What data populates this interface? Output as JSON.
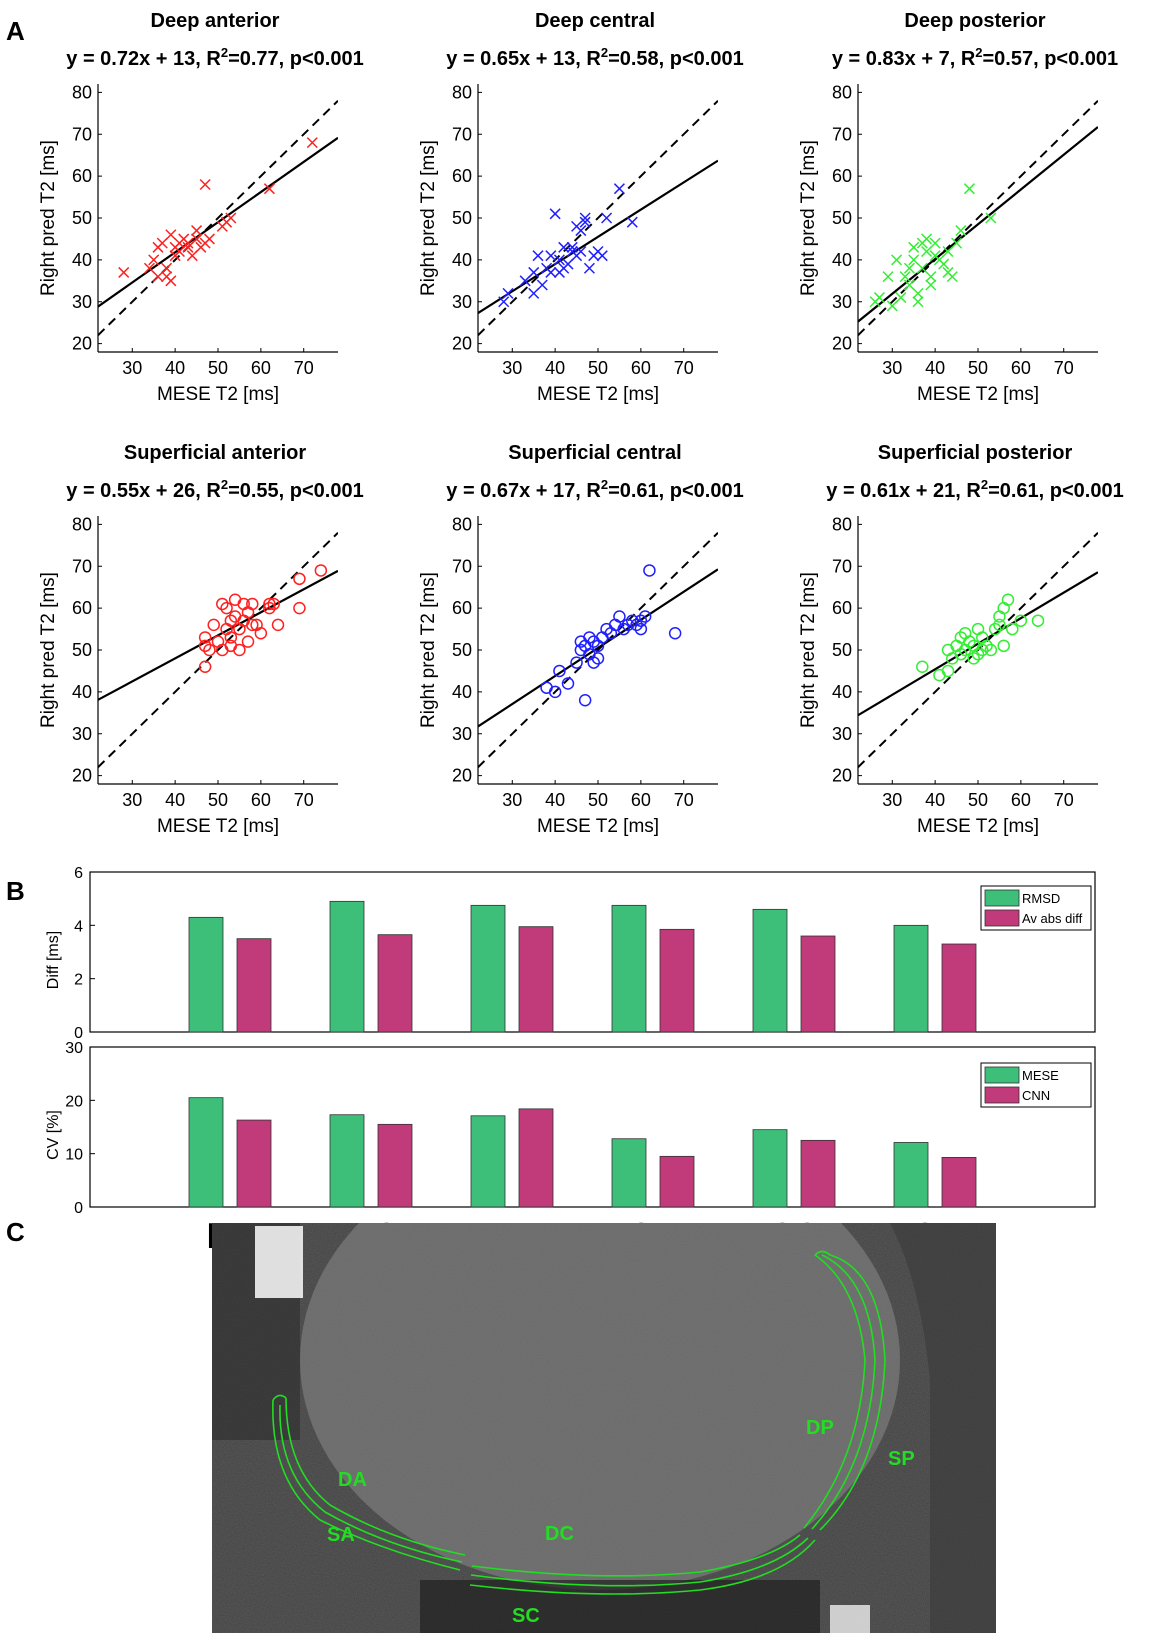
{
  "panel_labels": {
    "a": "A",
    "b": "B",
    "c": "C"
  },
  "chart_data": [
    {
      "type": "scatter",
      "title": "Deep anterior",
      "equation": {
        "slope": 0.72,
        "intercept": 13,
        "r2": "0.77",
        "p": "p<0.001"
      },
      "xlabel": "MESE T2 [ms]",
      "ylabel": "Right pred T2 [ms]",
      "xlim": [
        22,
        78
      ],
      "ylim": [
        18,
        82
      ],
      "xticks": [
        30,
        40,
        50,
        60,
        70
      ],
      "yticks": [
        20,
        30,
        40,
        50,
        60,
        70,
        80
      ],
      "marker": "x",
      "color": "#ff2020",
      "identity_line": true,
      "points": [
        [
          28,
          37
        ],
        [
          34,
          38
        ],
        [
          35,
          40
        ],
        [
          36,
          36
        ],
        [
          36,
          43
        ],
        [
          37,
          44
        ],
        [
          38,
          38
        ],
        [
          38,
          36
        ],
        [
          39,
          35
        ],
        [
          39,
          46
        ],
        [
          40,
          43
        ],
        [
          40,
          41
        ],
        [
          41,
          44
        ],
        [
          41,
          42
        ],
        [
          42,
          45
        ],
        [
          43,
          44
        ],
        [
          43,
          43
        ],
        [
          44,
          41
        ],
        [
          45,
          45
        ],
        [
          45,
          47
        ],
        [
          46,
          43
        ],
        [
          47,
          44
        ],
        [
          47,
          58
        ],
        [
          48,
          45
        ],
        [
          51,
          48
        ],
        [
          52,
          49
        ],
        [
          53,
          50
        ],
        [
          62,
          57
        ],
        [
          72,
          68
        ]
      ]
    },
    {
      "type": "scatter",
      "title": "Deep central",
      "equation": {
        "slope": 0.65,
        "intercept": 13,
        "r2": "0.58",
        "p": "p<0.001"
      },
      "xlabel": "MESE T2 [ms]",
      "ylabel": "Right pred T2 [ms]",
      "xlim": [
        22,
        78
      ],
      "ylim": [
        18,
        82
      ],
      "xticks": [
        30,
        40,
        50,
        60,
        70
      ],
      "yticks": [
        20,
        30,
        40,
        50,
        60,
        70,
        80
      ],
      "marker": "x",
      "color": "#2020ff",
      "identity_line": true,
      "points": [
        [
          28,
          30
        ],
        [
          29,
          32
        ],
        [
          33,
          35
        ],
        [
          35,
          32
        ],
        [
          35,
          37
        ],
        [
          36,
          41
        ],
        [
          37,
          34
        ],
        [
          38,
          38
        ],
        [
          39,
          41
        ],
        [
          39,
          37
        ],
        [
          40,
          51
        ],
        [
          41,
          40
        ],
        [
          41,
          37
        ],
        [
          42,
          43
        ],
        [
          42,
          38
        ],
        [
          43,
          39
        ],
        [
          44,
          43
        ],
        [
          44,
          42
        ],
        [
          45,
          41
        ],
        [
          45,
          48
        ],
        [
          46,
          47
        ],
        [
          46,
          42
        ],
        [
          47,
          50
        ],
        [
          47,
          49
        ],
        [
          48,
          38
        ],
        [
          49,
          41
        ],
        [
          50,
          42
        ],
        [
          51,
          41
        ],
        [
          52,
          50
        ],
        [
          55,
          57
        ],
        [
          58,
          49
        ]
      ]
    },
    {
      "type": "scatter",
      "title": "Deep posterior",
      "equation": {
        "slope": 0.83,
        "intercept": 7,
        "r2": "0.57",
        "p": "p<0.001"
      },
      "xlabel": "MESE T2 [ms]",
      "ylabel": "Right pred T2 [ms]",
      "xlim": [
        22,
        78
      ],
      "ylim": [
        18,
        82
      ],
      "xticks": [
        30,
        40,
        50,
        60,
        70
      ],
      "yticks": [
        20,
        30,
        40,
        50,
        60,
        70,
        80
      ],
      "marker": "x",
      "color": "#33ee33",
      "identity_line": true,
      "points": [
        [
          26,
          30
        ],
        [
          27,
          31
        ],
        [
          29,
          36
        ],
        [
          30,
          29
        ],
        [
          31,
          40
        ],
        [
          32,
          31
        ],
        [
          33,
          36
        ],
        [
          34,
          34
        ],
        [
          34,
          38
        ],
        [
          35,
          43
        ],
        [
          35,
          40
        ],
        [
          36,
          30
        ],
        [
          36,
          32
        ],
        [
          37,
          38
        ],
        [
          37,
          44
        ],
        [
          38,
          42
        ],
        [
          38,
          45
        ],
        [
          39,
          34
        ],
        [
          39,
          36
        ],
        [
          40,
          41
        ],
        [
          40,
          44
        ],
        [
          41,
          40
        ],
        [
          42,
          39
        ],
        [
          43,
          37
        ],
        [
          43,
          42
        ],
        [
          44,
          36
        ],
        [
          45,
          44
        ],
        [
          46,
          47
        ],
        [
          48,
          57
        ],
        [
          53,
          50
        ]
      ]
    },
    {
      "type": "scatter",
      "title": "Superficial anterior",
      "equation": {
        "slope": 0.55,
        "intercept": 26,
        "r2": "0.55",
        "p": "p<0.001"
      },
      "xlabel": "MESE T2 [ms]",
      "ylabel": "Right pred T2 [ms]",
      "xlim": [
        22,
        78
      ],
      "ylim": [
        18,
        82
      ],
      "xticks": [
        30,
        40,
        50,
        60,
        70
      ],
      "yticks": [
        20,
        30,
        40,
        50,
        60,
        70,
        80
      ],
      "marker": "o",
      "color": "#ff2020",
      "identity_line": true,
      "points": [
        [
          47,
          46
        ],
        [
          47,
          51
        ],
        [
          47,
          53
        ],
        [
          48,
          50
        ],
        [
          49,
          56
        ],
        [
          50,
          52
        ],
        [
          51,
          61
        ],
        [
          51,
          50
        ],
        [
          52,
          55
        ],
        [
          52,
          60
        ],
        [
          53,
          51
        ],
        [
          53,
          57
        ],
        [
          53,
          53
        ],
        [
          54,
          62
        ],
        [
          54,
          58
        ],
        [
          55,
          50
        ],
        [
          55,
          55
        ],
        [
          56,
          61
        ],
        [
          56,
          57
        ],
        [
          57,
          52
        ],
        [
          57,
          59
        ],
        [
          58,
          56
        ],
        [
          58,
          61
        ],
        [
          59,
          56
        ],
        [
          60,
          54
        ],
        [
          62,
          60
        ],
        [
          62,
          61
        ],
        [
          63,
          61
        ],
        [
          64,
          56
        ],
        [
          69,
          60
        ],
        [
          69,
          67
        ],
        [
          74,
          69
        ]
      ]
    },
    {
      "type": "scatter",
      "title": "Superficial central",
      "equation": {
        "slope": 0.67,
        "intercept": 17,
        "r2": "0.61",
        "p": "p<0.001"
      },
      "xlabel": "MESE T2 [ms]",
      "ylabel": "Right pred T2 [ms]",
      "xlim": [
        22,
        78
      ],
      "ylim": [
        18,
        82
      ],
      "xticks": [
        30,
        40,
        50,
        60,
        70
      ],
      "yticks": [
        20,
        30,
        40,
        50,
        60,
        70,
        80
      ],
      "marker": "o",
      "color": "#2020ff",
      "identity_line": true,
      "points": [
        [
          38,
          41
        ],
        [
          40,
          40
        ],
        [
          41,
          45
        ],
        [
          43,
          42
        ],
        [
          45,
          47
        ],
        [
          46,
          50
        ],
        [
          46,
          52
        ],
        [
          47,
          51
        ],
        [
          47,
          38
        ],
        [
          48,
          49
        ],
        [
          48,
          53
        ],
        [
          49,
          47
        ],
        [
          49,
          52
        ],
        [
          50,
          51
        ],
        [
          50,
          48
        ],
        [
          51,
          53
        ],
        [
          52,
          55
        ],
        [
          53,
          54
        ],
        [
          54,
          56
        ],
        [
          55,
          58
        ],
        [
          56,
          55
        ],
        [
          57,
          56
        ],
        [
          58,
          57
        ],
        [
          59,
          56
        ],
        [
          60,
          57
        ],
        [
          60,
          55
        ],
        [
          61,
          58
        ],
        [
          62,
          69
        ],
        [
          68,
          54
        ]
      ]
    },
    {
      "type": "scatter",
      "title": "Superficial posterior",
      "equation": {
        "slope": 0.61,
        "intercept": 21,
        "r2": "0.61",
        "p": "p<0.001"
      },
      "xlabel": "MESE T2 [ms]",
      "ylabel": "Right pred T2 [ms]",
      "xlim": [
        22,
        78
      ],
      "ylim": [
        18,
        82
      ],
      "xticks": [
        30,
        40,
        50,
        60,
        70
      ],
      "yticks": [
        20,
        30,
        40,
        50,
        60,
        70,
        80
      ],
      "marker": "o",
      "color": "#33ee33",
      "identity_line": true,
      "points": [
        [
          37,
          46
        ],
        [
          41,
          44
        ],
        [
          43,
          45
        ],
        [
          43,
          50
        ],
        [
          44,
          48
        ],
        [
          45,
          51
        ],
        [
          46,
          53
        ],
        [
          46,
          49
        ],
        [
          47,
          50
        ],
        [
          47,
          54
        ],
        [
          48,
          52
        ],
        [
          49,
          51
        ],
        [
          49,
          48
        ],
        [
          50,
          55
        ],
        [
          50,
          49
        ],
        [
          51,
          50
        ],
        [
          51,
          53
        ],
        [
          52,
          51
        ],
        [
          53,
          50
        ],
        [
          54,
          55
        ],
        [
          55,
          58
        ],
        [
          55,
          56
        ],
        [
          56,
          51
        ],
        [
          56,
          60
        ],
        [
          57,
          62
        ],
        [
          58,
          55
        ],
        [
          60,
          57
        ],
        [
          64,
          57
        ]
      ]
    },
    {
      "type": "bar",
      "ylabel": "Diff [ms]",
      "ylim": [
        0,
        6
      ],
      "yticks": [
        0,
        2,
        4,
        6
      ],
      "categories": [
        "DA",
        "DC",
        "DP",
        "SA",
        "SC",
        "SP"
      ],
      "series": [
        {
          "name": "RMSD",
          "color": "#3dbf7a",
          "values": [
            4.3,
            4.9,
            4.75,
            4.75,
            4.6,
            4.0
          ]
        },
        {
          "name": "Av abs diff",
          "color": "#c13a7a",
          "values": [
            3.5,
            3.65,
            3.95,
            3.85,
            3.6,
            3.3
          ]
        }
      ],
      "legend": "top-right"
    },
    {
      "type": "bar",
      "ylabel": "CV [%]",
      "ylim": [
        0,
        30
      ],
      "yticks": [
        0,
        10,
        20,
        30
      ],
      "categories": [
        "DA",
        "DC",
        "DP",
        "SA",
        "SC",
        "SP"
      ],
      "series": [
        {
          "name": "MESE",
          "color": "#3dbf7a",
          "values": [
            20.5,
            17.3,
            17.1,
            12.8,
            14.5,
            12.1
          ]
        },
        {
          "name": "CNN",
          "color": "#c13a7a",
          "values": [
            16.3,
            15.5,
            18.4,
            9.5,
            12.5,
            9.3
          ]
        }
      ],
      "legend": "top-right"
    }
  ],
  "mri": {
    "labels": [
      "DA",
      "DC",
      "DP",
      "SA",
      "SC",
      "SP"
    ],
    "outline_color": "#22dd22"
  }
}
